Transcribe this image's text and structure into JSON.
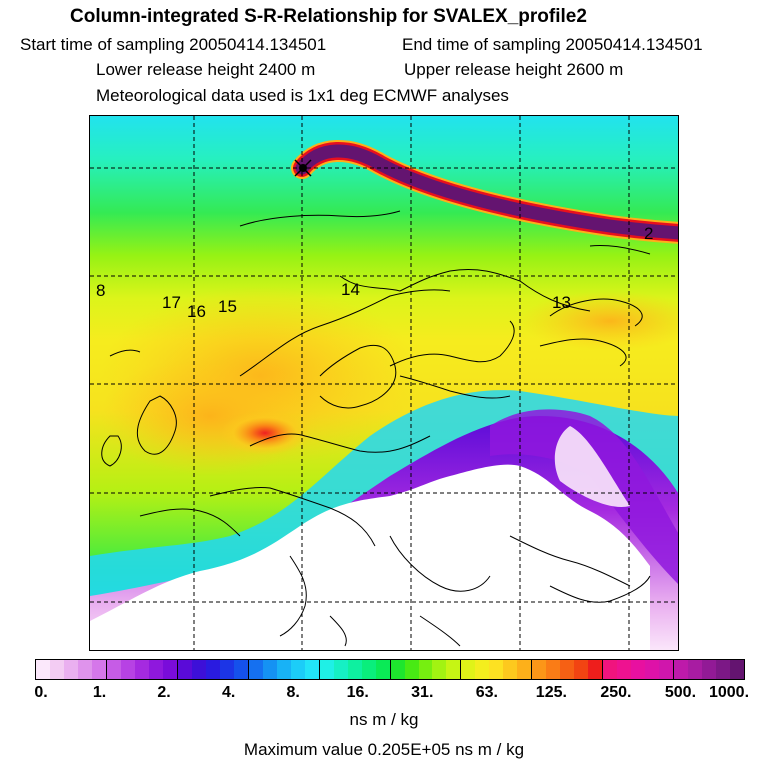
{
  "header": {
    "title": "Column-integrated S-R-Relationship for SVALEX_profile2",
    "start_time": "Start time of sampling 20050414.134501",
    "end_time": "End time of sampling 20050414.134501",
    "lower_release": "Lower release height 2400 m",
    "upper_release": "Upper release height 2600 m",
    "met_data": "Meteorological data used is 1x1 deg ECMWF analyses"
  },
  "map": {
    "labels": [
      "8",
      "17",
      "16",
      "15",
      "14",
      "13",
      "2"
    ],
    "release_site_marker": "x"
  },
  "colorbar": {
    "tick_labels": [
      "0.",
      "1.",
      "2.",
      "4.",
      "8.",
      "16.",
      "31.",
      "63.",
      "125.",
      "250.",
      "500.",
      "1000."
    ],
    "colors": [
      [
        "#fbe8fb",
        "#f3ccf3",
        "#eab0f0",
        "#df93ec",
        "#d577ea"
      ],
      [
        "#c65ce6",
        "#b742e4",
        "#a52ae0",
        "#8f18dd",
        "#7a0cda"
      ],
      [
        "#5a0bd8",
        "#3d10d8",
        "#2a1be0",
        "#1c35e6",
        "#1551ec"
      ],
      [
        "#1570f0",
        "#1592f3",
        "#18b2f6",
        "#1ccdf8",
        "#22e4f8"
      ],
      [
        "#1ff0e6",
        "#16f0c4",
        "#0ef0a0",
        "#0aee7c",
        "#0aea56"
      ],
      [
        "#1ee62e",
        "#48ea14",
        "#76ef10",
        "#a2f312",
        "#c6f514"
      ],
      [
        "#e0f318",
        "#f4ee1e",
        "#fde122",
        "#fdc91e",
        "#fdb01a"
      ],
      [
        "#fc9618",
        "#fa7c16",
        "#f66014",
        "#f24412",
        "#ee1e1c"
      ],
      [
        "#f0147e",
        "#ee1290",
        "#e810a0",
        "#de12a8",
        "#d016ac"
      ],
      [
        "#be1aaa",
        "#a81ca2",
        "#921a96",
        "#7c1886",
        "#641470"
      ]
    ]
  },
  "units": "ns m / kg",
  "max_value": "Maximum value  0.205E+05 ns m / kg"
}
